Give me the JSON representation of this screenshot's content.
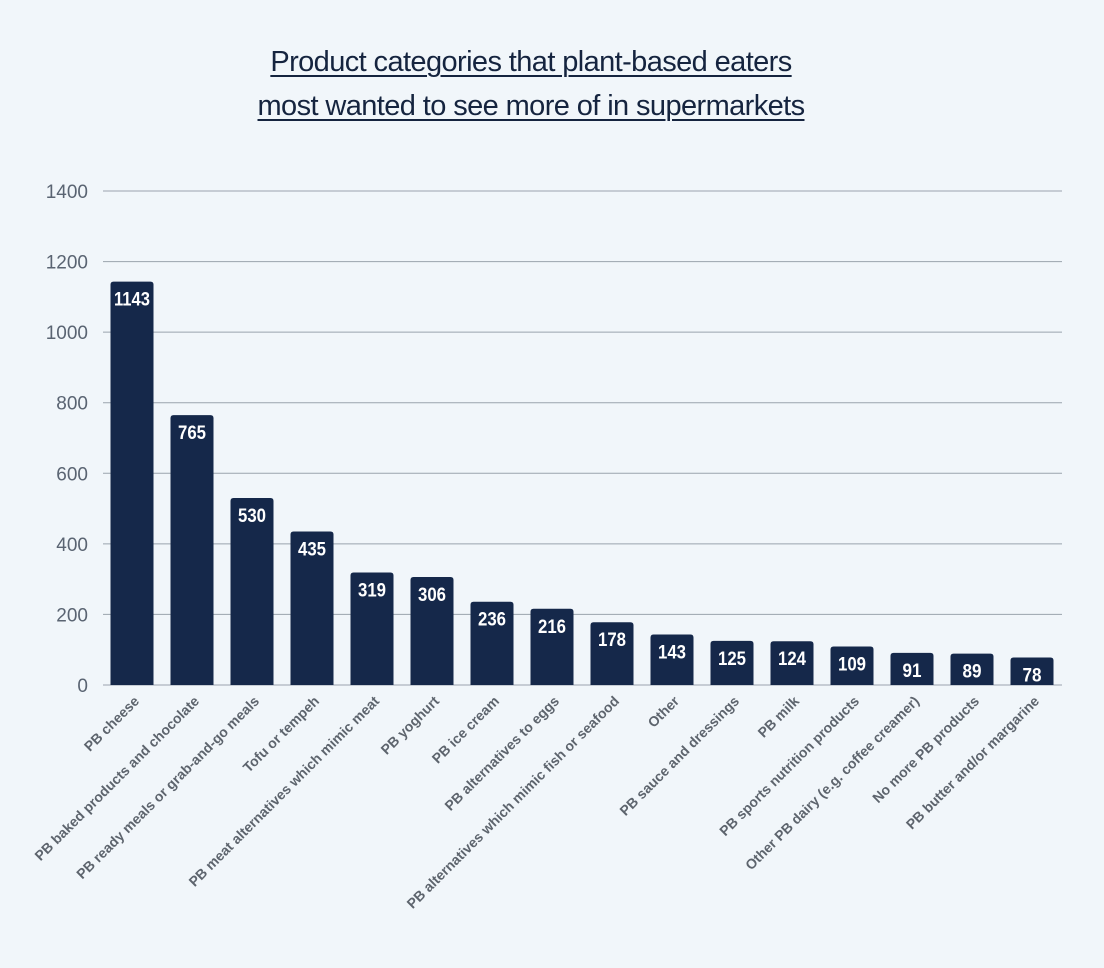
{
  "chart_data": {
    "type": "bar",
    "title_lines": [
      "Product categories that plant-based eaters",
      "most wanted to see more of in supermarkets"
    ],
    "categories": [
      "PB cheese",
      "PB baked products and chocolate",
      "PB ready meals or grab-and-go meals",
      "Tofu or tempeh",
      "PB meat alternatives which mimic meat",
      "PB yoghurt",
      "PB ice cream",
      "PB alternatives to eggs",
      "PB alternatives which mimic fish or seafood",
      "Other",
      "PB sauce and dressings",
      "PB milk",
      "PB sports nutrition products",
      "Other PB dairy (e.g. coffee creamer)",
      "No more PB products",
      "PB butter and/or margarine"
    ],
    "values": [
      1143,
      765,
      530,
      435,
      319,
      306,
      236,
      216,
      178,
      143,
      125,
      124,
      109,
      91,
      89,
      78
    ],
    "ylim": [
      0,
      1400
    ],
    "yticks": [
      "0",
      "200",
      "400",
      "600",
      "800",
      "1000",
      "1200",
      "1400"
    ],
    "xlabel": "",
    "ylabel": "",
    "grid": true,
    "data_labels": true,
    "bar_color": "#15284a",
    "background_color": "#f1f6fa"
  }
}
